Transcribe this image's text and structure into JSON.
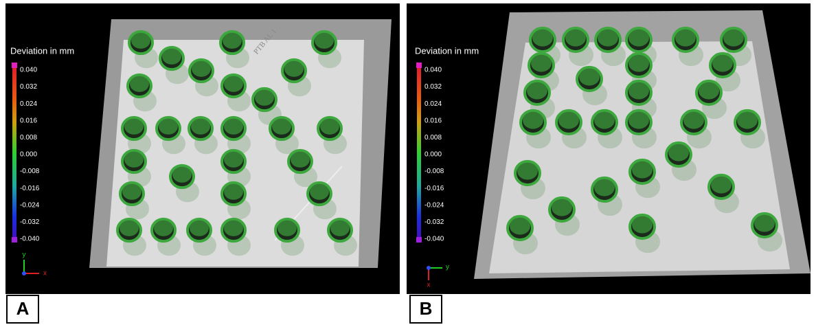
{
  "panels": [
    {
      "label": "A",
      "legend_title": "Deviation in mm",
      "legend_ticks": [
        "0.040",
        "0.032",
        "0.024",
        "0.016",
        "0.008",
        "0.000",
        "-0.008",
        "-0.016",
        "-0.024",
        "-0.032",
        "-0.040"
      ],
      "axis_labels": [
        "y",
        "x"
      ],
      "engraving": "PTB AL 1"
    },
    {
      "label": "B",
      "legend_title": "Deviation in mm",
      "legend_ticks": [
        "0.040",
        "0.032",
        "0.024",
        "0.016",
        "0.008",
        "0.000",
        "-0.008",
        "-0.016",
        "-0.024",
        "-0.032",
        "-0.040"
      ],
      "axis_labels": [
        "y",
        "x"
      ]
    }
  ]
}
